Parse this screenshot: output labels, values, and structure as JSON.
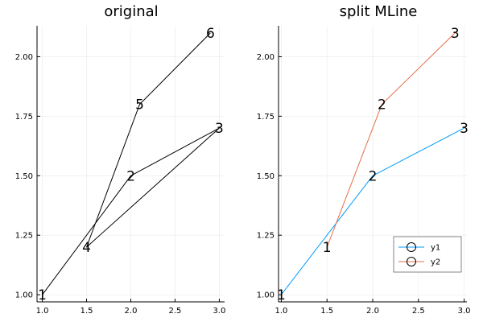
{
  "chart_data": [
    {
      "type": "line",
      "title": "original",
      "xlim": [
        0.94,
        3.06
      ],
      "ylim": [
        0.97,
        2.13
      ],
      "xticks": [
        1.0,
        1.5,
        2.0,
        2.5,
        3.0
      ],
      "xtick_labels": [
        "1.0",
        "1.5",
        "2.0",
        "2.5",
        "3.0"
      ],
      "yticks": [
        1.0,
        1.25,
        1.5,
        1.75,
        2.0
      ],
      "ytick_labels": [
        "1.00",
        "1.25",
        "1.50",
        "1.75",
        "2.00"
      ],
      "grid": true,
      "legend": null,
      "series": [
        {
          "color": "#000000",
          "x": [
            1.0,
            2.0,
            3.0,
            1.5,
            2.1,
            2.9
          ],
          "y": [
            1.0,
            1.5,
            1.7,
            1.2,
            1.8,
            2.1
          ]
        }
      ],
      "annotations": [
        {
          "text": "1",
          "x": 1.0,
          "y": 1.0
        },
        {
          "text": "2",
          "x": 2.0,
          "y": 1.5
        },
        {
          "text": "3",
          "x": 3.0,
          "y": 1.7
        },
        {
          "text": "4",
          "x": 1.5,
          "y": 1.2
        },
        {
          "text": "5",
          "x": 2.1,
          "y": 1.8
        },
        {
          "text": "6",
          "x": 2.9,
          "y": 2.1
        }
      ]
    },
    {
      "type": "line",
      "title": "split MLine",
      "xlim": [
        0.97,
        3.03
      ],
      "ylim": [
        0.97,
        2.13
      ],
      "xticks": [
        1.0,
        1.5,
        2.0,
        2.5,
        3.0
      ],
      "xtick_labels": [
        "1.0",
        "1.5",
        "2.0",
        "2.5",
        "3.0"
      ],
      "yticks": [
        1.0,
        1.25,
        1.5,
        1.75,
        2.0
      ],
      "ytick_labels": [
        "1.00",
        "1.25",
        "1.50",
        "1.75",
        "2.00"
      ],
      "grid": true,
      "legend": "bottom-right",
      "series": [
        {
          "name": "y1",
          "color": "#009AFA",
          "x": [
            1.0,
            2.0,
            3.0
          ],
          "y": [
            1.0,
            1.5,
            1.7
          ]
        },
        {
          "name": "y2",
          "color": "#E36F47",
          "x": [
            1.5,
            2.1,
            2.9
          ],
          "y": [
            1.2,
            1.8,
            2.1
          ]
        }
      ],
      "annotations": [
        {
          "text": "1",
          "x": 1.0,
          "y": 1.0
        },
        {
          "text": "2",
          "x": 2.0,
          "y": 1.5
        },
        {
          "text": "3",
          "x": 3.0,
          "y": 1.7
        },
        {
          "text": "1",
          "x": 1.5,
          "y": 1.2
        },
        {
          "text": "2",
          "x": 2.1,
          "y": 1.8
        },
        {
          "text": "3",
          "x": 2.9,
          "y": 2.1
        }
      ]
    }
  ]
}
